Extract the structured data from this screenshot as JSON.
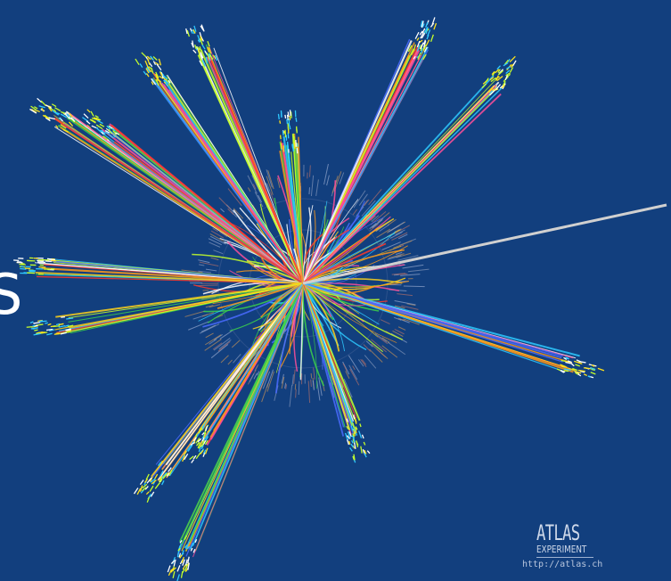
{
  "image": {
    "subject": "ATLAS particle collision event display",
    "background_color": "#123f7e",
    "track_colors": [
      "#ffd21a",
      "#ff3a2a",
      "#3cd24a",
      "#2ec9ff",
      "#ff9a1a",
      "#c6ff2a",
      "#ffffff",
      "#4a6bff",
      "#ff4f9a"
    ]
  },
  "edge_glyph": "S",
  "logo": {
    "name": "ATLAS",
    "subtitle": "EXPERIMENT",
    "url": "http://atlas.ch"
  }
}
